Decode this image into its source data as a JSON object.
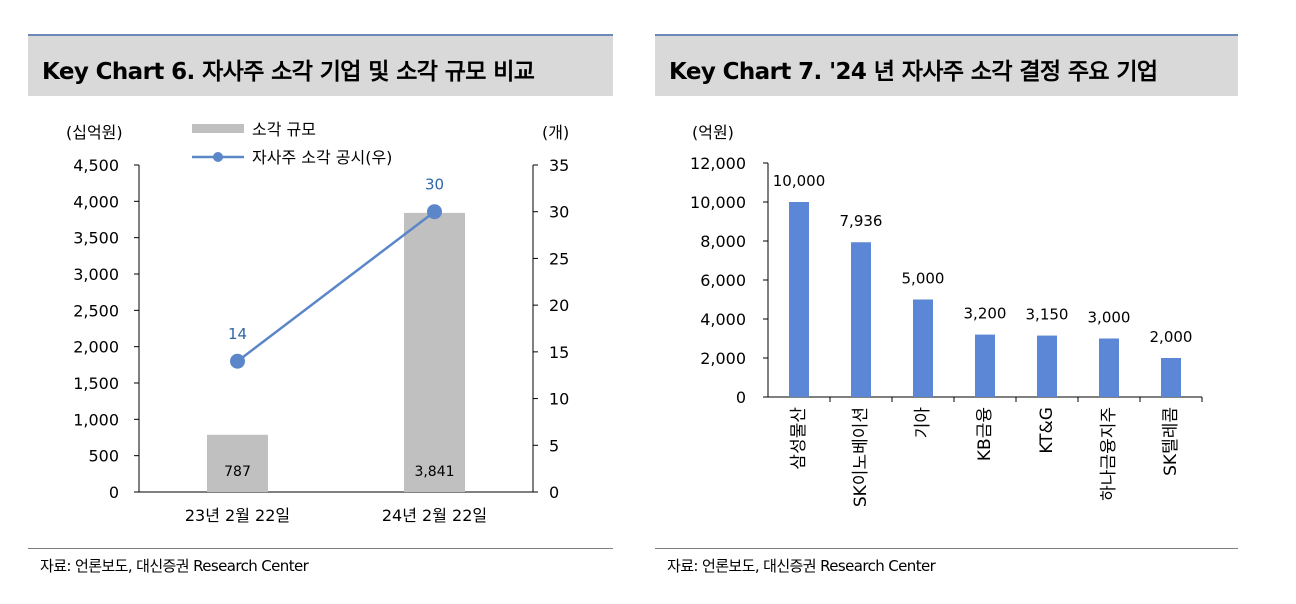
{
  "colors": {
    "bar_gray": "#c0c0c0",
    "line_blue": "#5b87c9",
    "bar_blue": "#5b87d6",
    "title_bg": "#d9d9d9",
    "label_blue": "#2f66a8"
  },
  "left": {
    "title": "Key Chart 6. 자사주 소각 기업 및 소각 규모 비교",
    "source": "자료: 언론보도, 대신증권 Research Center",
    "chart_data": {
      "type": "bar",
      "categories": [
        "23년 2월 22일",
        "24년 2월 22일"
      ],
      "series": [
        {
          "name": "소각 규모",
          "type": "bar",
          "axis": "left",
          "values": [
            787,
            3841
          ],
          "labels": [
            "787",
            "3,841"
          ]
        },
        {
          "name": "자사주 소각 공시(우)",
          "type": "line",
          "axis": "right",
          "values": [
            14,
            30
          ],
          "labels": [
            "14",
            "30"
          ]
        }
      ],
      "y_left": {
        "unit": "(십억원)",
        "min": 0,
        "max": 4500,
        "ticks": [
          "0",
          "500",
          "1,000",
          "1,500",
          "2,000",
          "2,500",
          "3,000",
          "3,500",
          "4,000",
          "4,500"
        ]
      },
      "y_right": {
        "unit": "(개)",
        "min": 0,
        "max": 35,
        "ticks": [
          "0",
          "5",
          "10",
          "15",
          "20",
          "25",
          "30",
          "35"
        ]
      },
      "legend": [
        "소각 규모",
        "자사주 소각 공시(우)"
      ]
    }
  },
  "right": {
    "title": "Key Chart 7. '24 년 자사주 소각 결정 주요 기업",
    "source": "자료: 언론보도, 대신증권 Research Center",
    "chart_data": {
      "type": "bar",
      "categories": [
        "삼성물산",
        "SK이노베이션",
        "기아",
        "KB금융",
        "KT&G",
        "하나금융지주",
        "SK텔레콤"
      ],
      "values": [
        10000,
        7936,
        5000,
        3200,
        3150,
        3000,
        2000
      ],
      "value_labels": [
        "10,000",
        "7,936",
        "5,000",
        "3,200",
        "3,150",
        "3,000",
        "2,000"
      ],
      "y_axis": {
        "unit": "(억원)",
        "min": 0,
        "max": 12000,
        "ticks": [
          "0",
          "2,000",
          "4,000",
          "6,000",
          "8,000",
          "10,000",
          "12,000"
        ]
      }
    }
  }
}
